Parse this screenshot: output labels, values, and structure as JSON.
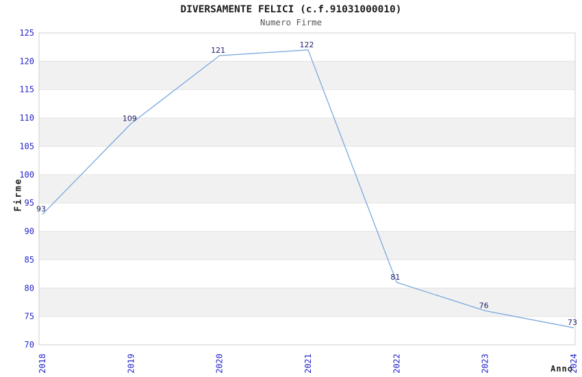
{
  "chart_data": {
    "type": "line",
    "title": "DIVERSAMENTE FELICI (c.f.91031000010)",
    "subtitle": "Numero Firme",
    "xlabel": "Anno",
    "ylabel": "Firme",
    "categories": [
      "2018",
      "2019",
      "2020",
      "2021",
      "2022",
      "2023",
      "2024"
    ],
    "values": [
      93,
      109,
      121,
      122,
      81,
      76,
      73
    ],
    "ylim": [
      70,
      125
    ],
    "ytick_step": 5,
    "yticks": [
      70,
      75,
      80,
      85,
      90,
      95,
      100,
      105,
      110,
      115,
      120,
      125
    ],
    "grid": "alternating-horizontal-bands",
    "legend": "none",
    "data_labels_shown": true,
    "colors": {
      "line": "#79a8de",
      "tick_labels": "#2222cc",
      "data_labels": "#1b1b6e",
      "band": "#f1f1f1",
      "gridline": "#e2e2e2",
      "border": "#cfcfcf",
      "title": "#1c1c1c",
      "subtitle": "#555555"
    }
  }
}
